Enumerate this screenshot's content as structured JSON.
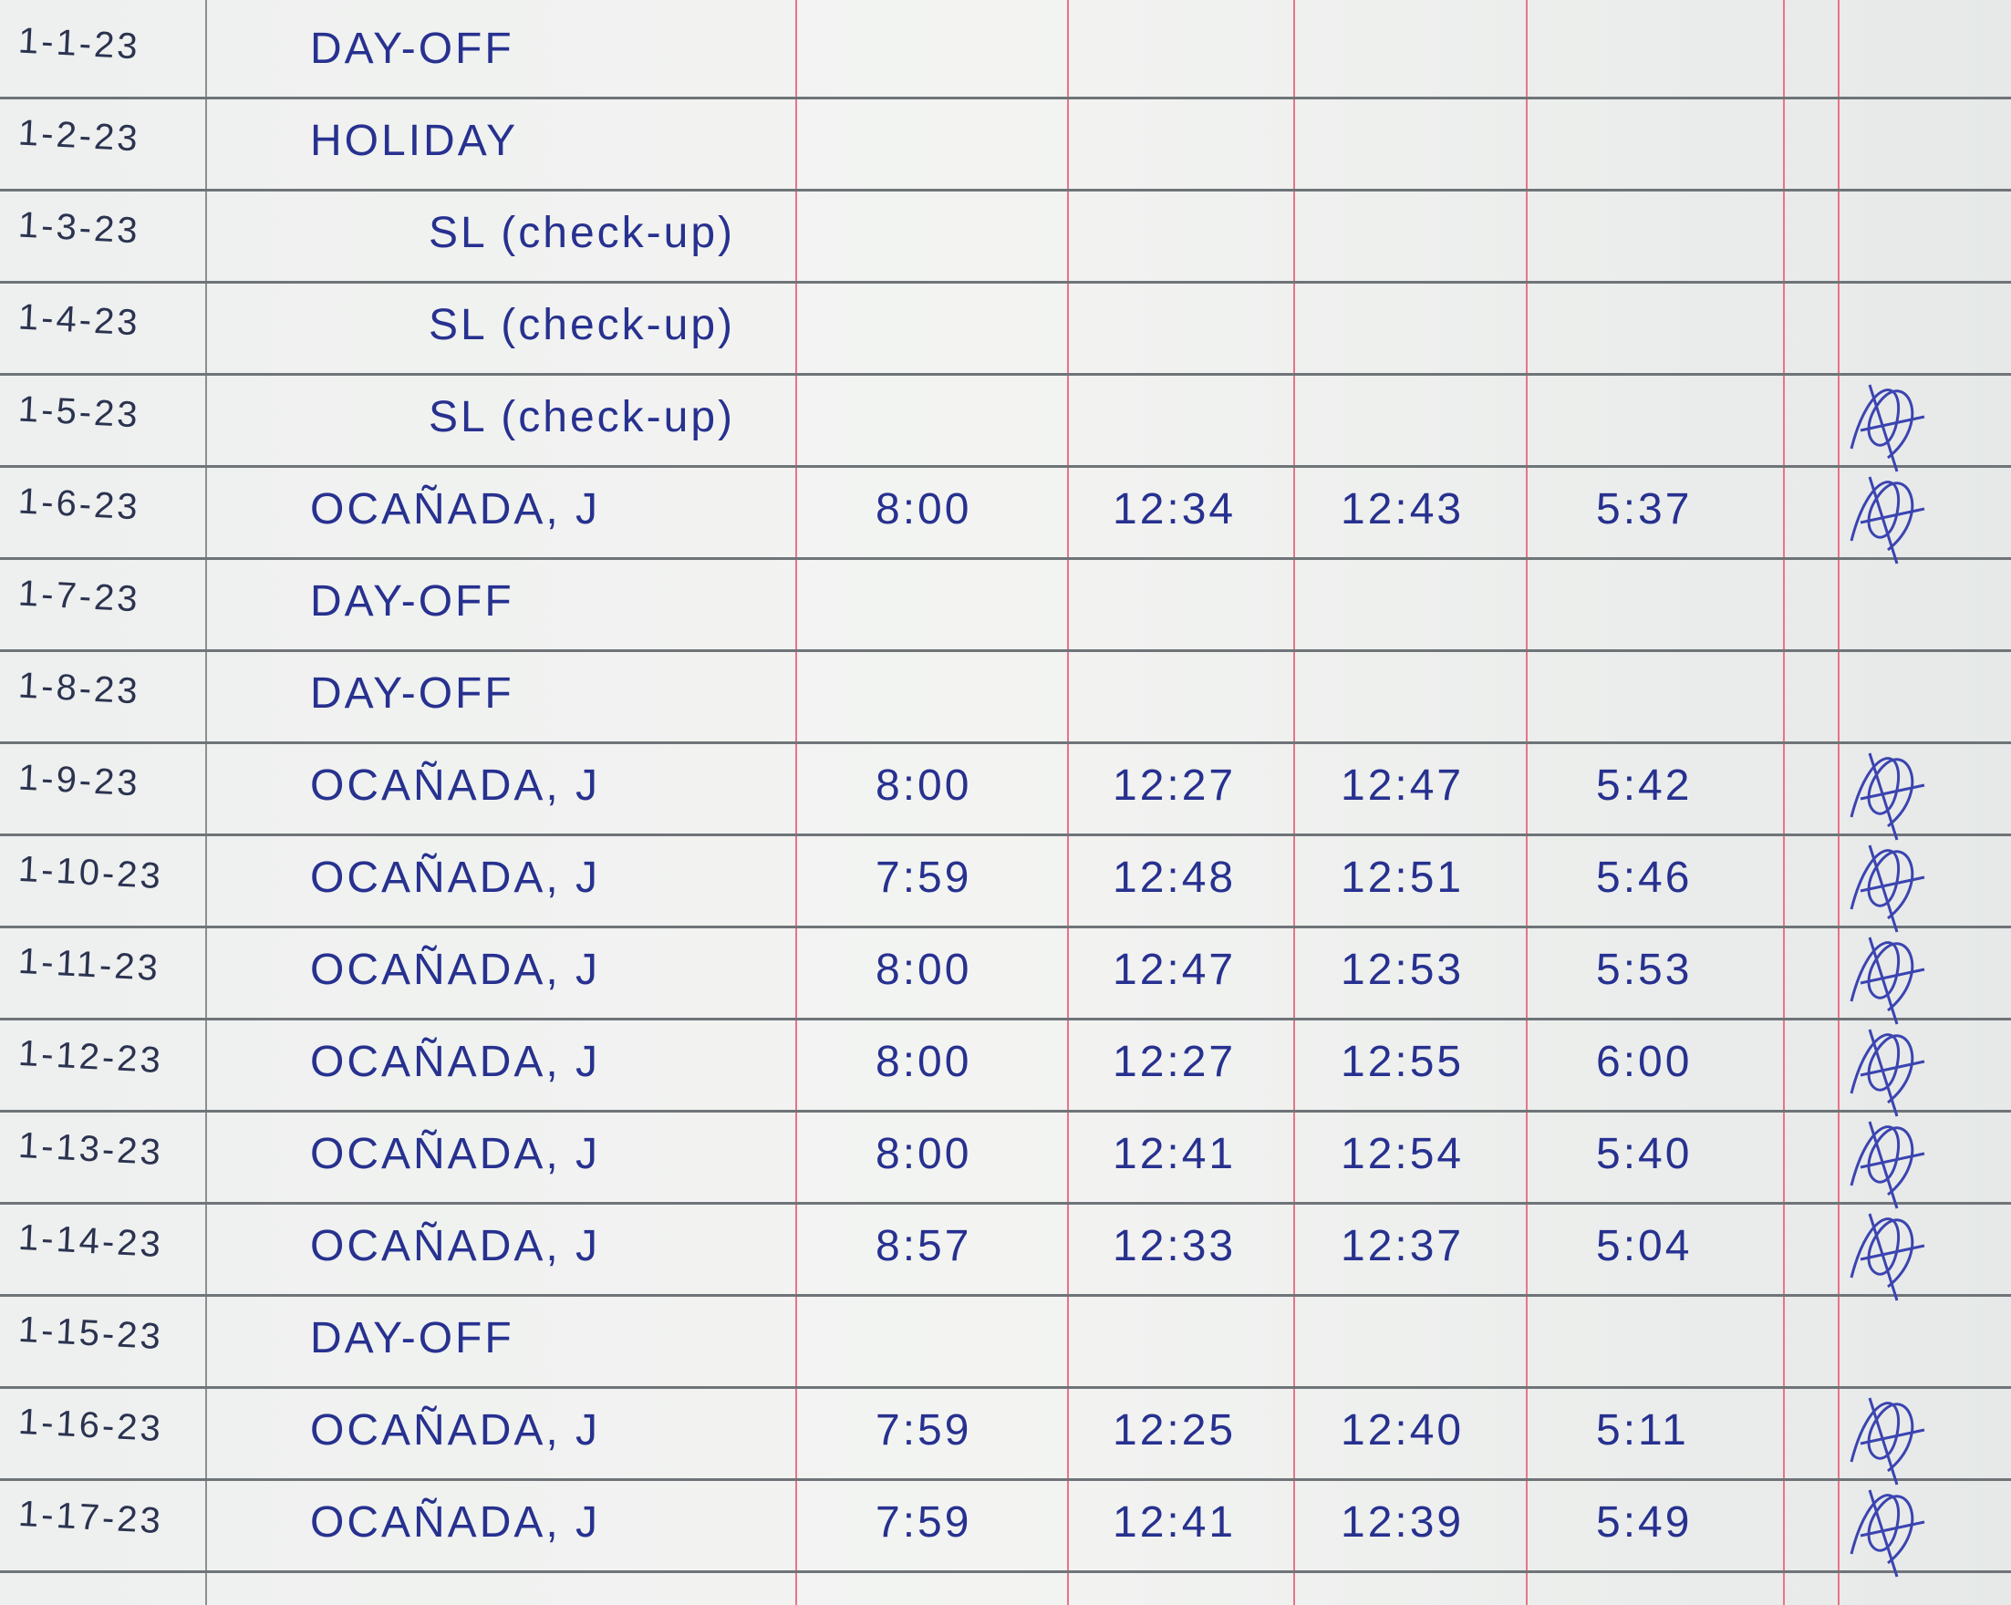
{
  "colors": {
    "ink": "#27318f",
    "ruling": "#6f7478",
    "margin_red": "#e8738a",
    "paper": "#f1f2f0"
  },
  "rows": [
    {
      "date": "1-1-23",
      "entry": "DAY-OFF",
      "time_in_am": "",
      "time_out_am": "",
      "time_in_pm": "",
      "time_out_pm": "",
      "signed": false
    },
    {
      "date": "1-2-23",
      "entry": "HOLIDAY",
      "time_in_am": "",
      "time_out_am": "",
      "time_in_pm": "",
      "time_out_pm": "",
      "signed": false
    },
    {
      "date": "1-3-23",
      "entry": "SL (check-up)",
      "time_in_am": "",
      "time_out_am": "",
      "time_in_pm": "",
      "time_out_pm": "",
      "signed": false
    },
    {
      "date": "1-4-23",
      "entry": "SL (check-up)",
      "time_in_am": "",
      "time_out_am": "",
      "time_in_pm": "",
      "time_out_pm": "",
      "signed": false
    },
    {
      "date": "1-5-23",
      "entry": "SL (check-up)",
      "time_in_am": "",
      "time_out_am": "",
      "time_in_pm": "",
      "time_out_pm": "",
      "signed": true
    },
    {
      "date": "1-6-23",
      "entry": "OCAÑADA, J",
      "time_in_am": "8:00",
      "time_out_am": "12:34",
      "time_in_pm": "12:43",
      "time_out_pm": "5:37",
      "signed": true
    },
    {
      "date": "1-7-23",
      "entry": "DAY-OFF",
      "time_in_am": "",
      "time_out_am": "",
      "time_in_pm": "",
      "time_out_pm": "",
      "signed": false
    },
    {
      "date": "1-8-23",
      "entry": "DAY-OFF",
      "time_in_am": "",
      "time_out_am": "",
      "time_in_pm": "",
      "time_out_pm": "",
      "signed": false
    },
    {
      "date": "1-9-23",
      "entry": "OCAÑADA, J",
      "time_in_am": "8:00",
      "time_out_am": "12:27",
      "time_in_pm": "12:47",
      "time_out_pm": "5:42",
      "signed": true
    },
    {
      "date": "1-10-23",
      "entry": "OCAÑADA, J",
      "time_in_am": "7:59",
      "time_out_am": "12:48",
      "time_in_pm": "12:51",
      "time_out_pm": "5:46",
      "signed": true
    },
    {
      "date": "1-11-23",
      "entry": "OCAÑADA, J",
      "time_in_am": "8:00",
      "time_out_am": "12:47",
      "time_in_pm": "12:53",
      "time_out_pm": "5:53",
      "signed": true
    },
    {
      "date": "1-12-23",
      "entry": "OCAÑADA, J",
      "time_in_am": "8:00",
      "time_out_am": "12:27",
      "time_in_pm": "12:55",
      "time_out_pm": "6:00",
      "signed": true
    },
    {
      "date": "1-13-23",
      "entry": "OCAÑADA, J",
      "time_in_am": "8:00",
      "time_out_am": "12:41",
      "time_in_pm": "12:54",
      "time_out_pm": "5:40",
      "signed": true
    },
    {
      "date": "1-14-23",
      "entry": "OCAÑADA, J",
      "time_in_am": "8:57",
      "time_out_am": "12:33",
      "time_in_pm": "12:37",
      "time_out_pm": "5:04",
      "signed": true
    },
    {
      "date": "1-15-23",
      "entry": "DAY-OFF",
      "time_in_am": "",
      "time_out_am": "",
      "time_in_pm": "",
      "time_out_pm": "",
      "signed": false
    },
    {
      "date": "1-16-23",
      "entry": "OCAÑADA, J",
      "time_in_am": "7:59",
      "time_out_am": "12:25",
      "time_in_pm": "12:40",
      "time_out_pm": "5:11",
      "signed": true
    },
    {
      "date": "1-17-23",
      "entry": "OCAÑADA, J",
      "time_in_am": "7:59",
      "time_out_am": "12:41",
      "time_in_pm": "12:39",
      "time_out_pm": "5:49",
      "signed": true
    }
  ]
}
